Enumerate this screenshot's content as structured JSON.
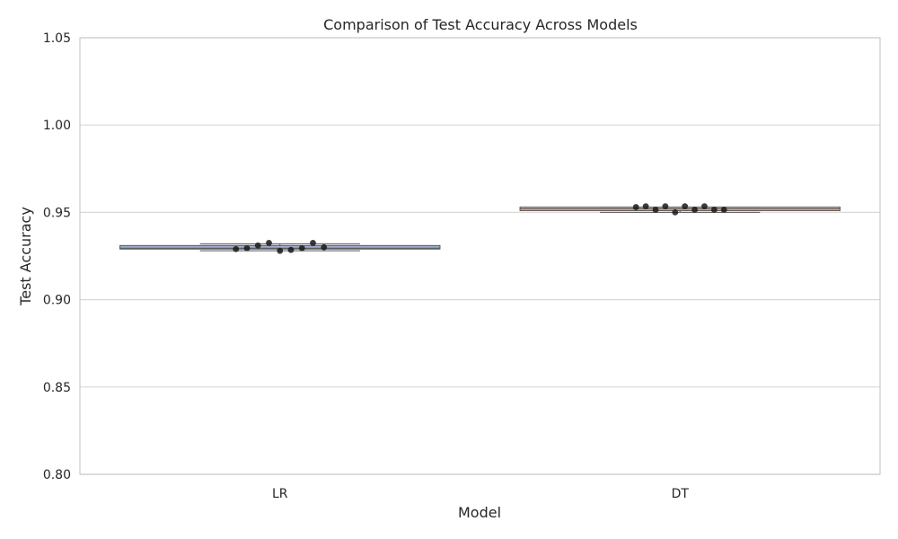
{
  "chart_data": {
    "type": "box",
    "title": "Comparison of Test Accuracy Across Models",
    "xlabel": "Model",
    "ylabel": "Test Accuracy",
    "categories": [
      "LR",
      "DT"
    ],
    "ylim": [
      0.8,
      1.05
    ],
    "yticks": [
      "0.80",
      "0.85",
      "0.90",
      "0.95",
      "1.00",
      "1.05"
    ],
    "grid": true,
    "boxes": [
      {
        "name": "LR",
        "color": "#8da0cb",
        "min": 0.928,
        "q1": 0.929,
        "median": 0.9295,
        "q3": 0.931,
        "max": 0.932
      },
      {
        "name": "DT",
        "color": "#e5a88a",
        "min": 0.95,
        "q1": 0.951,
        "median": 0.952,
        "q3": 0.953,
        "max": 0.953
      }
    ],
    "points": [
      {
        "category": "LR",
        "values": [
          0.929,
          0.9295,
          0.931,
          0.9325,
          0.928,
          0.9285,
          0.9295,
          0.9325,
          0.93
        ]
      },
      {
        "category": "DT",
        "values": [
          0.953,
          0.9535,
          0.9515,
          0.9535,
          0.95,
          0.9535,
          0.9515,
          0.9535,
          0.9515,
          0.9515
        ]
      }
    ]
  }
}
